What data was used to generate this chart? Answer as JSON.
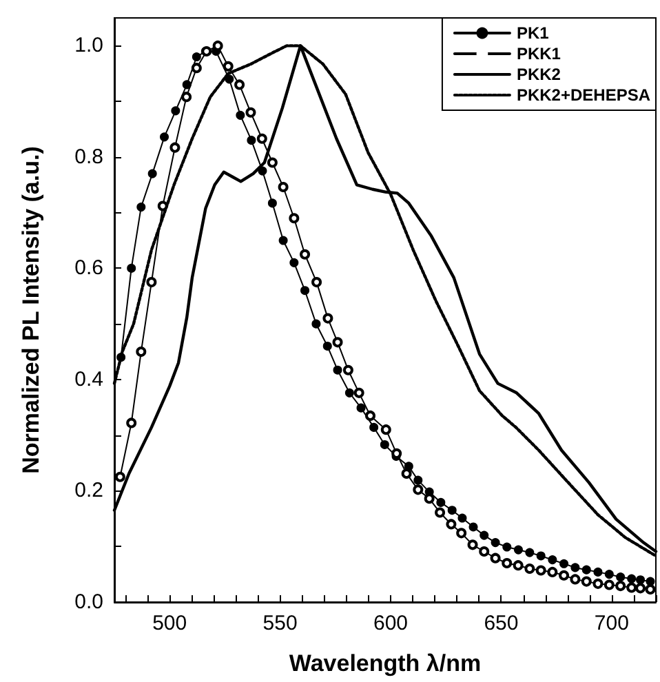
{
  "chart_data": {
    "type": "line",
    "xlabel": "Wavelength λ/nm",
    "ylabel": "Normalized PL Intensity (a.u.)",
    "xlim": [
      475,
      720
    ],
    "ylim": [
      0,
      1.05
    ],
    "xticks": [
      {
        "value": 480,
        "label": null
      },
      {
        "value": 490,
        "label": null
      },
      500,
      {
        "value": 510,
        "label": null
      },
      {
        "value": 520,
        "label": null
      },
      {
        "value": 530,
        "label": null
      },
      {
        "value": 540,
        "label": null
      },
      550,
      {
        "value": 560,
        "label": null
      },
      {
        "value": 570,
        "label": null
      },
      {
        "value": 580,
        "label": null
      },
      {
        "value": 590,
        "label": null
      },
      600,
      {
        "value": 610,
        "label": null
      },
      {
        "value": 620,
        "label": null
      },
      {
        "value": 630,
        "label": null
      },
      {
        "value": 640,
        "label": null
      },
      650,
      {
        "value": 660,
        "label": null
      },
      {
        "value": 670,
        "label": null
      },
      {
        "value": 680,
        "label": null
      },
      {
        "value": 690,
        "label": null
      },
      700,
      {
        "value": 710,
        "label": null
      },
      {
        "value": 720,
        "label": null
      }
    ],
    "yticks": [
      {
        "value": 0,
        "label": "0.0"
      },
      {
        "value": 0.1,
        "label": null
      },
      {
        "value": 0.2,
        "label": "0.2"
      },
      {
        "value": 0.3,
        "label": null
      },
      {
        "value": 0.4,
        "label": "0.4"
      },
      {
        "value": 0.5,
        "label": null
      },
      {
        "value": 0.6,
        "label": "0.6"
      },
      {
        "value": 0.7,
        "label": null
      },
      {
        "value": 0.8,
        "label": "0.8"
      },
      {
        "value": 0.9,
        "label": null
      },
      {
        "value": 1.0,
        "label": "1.0"
      }
    ],
    "grid": false,
    "legend": "top right",
    "series": [
      {
        "name": "PK1",
        "color": "#000000",
        "marker": "circle",
        "line_style": "solid",
        "x": [
          478,
          482.7,
          487.1,
          492.2,
          497.6,
          502.7,
          507.8,
          512.2,
          516.3,
          521,
          527,
          532,
          537,
          542,
          546.5,
          551.4,
          556.3,
          561.2,
          566.3,
          571.4,
          576,
          581.4,
          586.6,
          592.4,
          597.3,
          602.5,
          608.2,
          612.4,
          617.5,
          622.7,
          627.8,
          632.4,
          637.4,
          642.3,
          647.4,
          652.6,
          657.8,
          662.9,
          668,
          673.2,
          678.4,
          683.5,
          688.6,
          693.8,
          698.9,
          704,
          709,
          713,
          717.5
        ],
        "values": [
          0.44,
          0.6,
          0.71,
          0.77,
          0.836,
          0.883,
          0.93,
          0.98,
          0.99,
          0.99,
          0.94,
          0.875,
          0.83,
          0.775,
          0.717,
          0.65,
          0.61,
          0.56,
          0.5,
          0.46,
          0.417,
          0.376,
          0.349,
          0.314,
          0.283,
          0.262,
          0.244,
          0.219,
          0.198,
          0.179,
          0.165,
          0.151,
          0.135,
          0.12,
          0.107,
          0.099,
          0.094,
          0.089,
          0.083,
          0.076,
          0.069,
          0.062,
          0.058,
          0.054,
          0.05,
          0.045,
          0.042,
          0.04,
          0.037
        ]
      },
      {
        "name": "PKK1",
        "color": "#000000",
        "marker": "open circle",
        "line_style": "solid",
        "x": [
          477.6,
          482.7,
          487.1,
          491.8,
          496.9,
          502.4,
          507.6,
          512.2,
          516.7,
          521.8,
          526.5,
          531.6,
          536.7,
          541.8,
          546.5,
          551.4,
          556.3,
          561.2,
          566.5,
          571.6,
          576,
          580.8,
          585.7,
          590.8,
          597.9,
          602.7,
          607.2,
          612.4,
          617.5,
          622.3,
          627.4,
          632,
          637.1,
          642.3,
          647.4,
          652.6,
          657.7,
          662.9,
          668,
          673.2,
          678.4,
          683.5,
          688.6,
          693.8,
          698.9,
          704,
          709,
          713,
          717.5
        ],
        "values": [
          0.225,
          0.322,
          0.45,
          0.575,
          0.712,
          0.817,
          0.908,
          0.96,
          0.99,
          1.0,
          0.963,
          0.93,
          0.88,
          0.833,
          0.79,
          0.746,
          0.69,
          0.625,
          0.575,
          0.51,
          0.467,
          0.417,
          0.376,
          0.335,
          0.31,
          0.267,
          0.231,
          0.202,
          0.186,
          0.161,
          0.14,
          0.124,
          0.103,
          0.091,
          0.079,
          0.07,
          0.066,
          0.06,
          0.057,
          0.054,
          0.048,
          0.041,
          0.037,
          0.033,
          0.031,
          0.029,
          0.026,
          0.025,
          0.023
        ]
      },
      {
        "name": "PKK2",
        "color": "#000000",
        "marker": "none",
        "line_style": "solid",
        "x": [
          475,
          481.6,
          491.8,
          500,
          504,
          507.8,
          510.2,
          516.3,
          520.4,
          524.5,
          528.6,
          532.2,
          537.8,
          542.9,
          551,
          559.2,
          567.3,
          575.5,
          584.7,
          591.8,
          597.9,
          603,
          608.2,
          618.4,
          628.6,
          640.2,
          648.5,
          657,
          667,
          677.3,
          689.7,
          702,
          714.4,
          720
        ],
        "values": [
          0.165,
          0.231,
          0.314,
          0.388,
          0.43,
          0.512,
          0.583,
          0.708,
          0.75,
          0.773,
          0.764,
          0.756,
          0.77,
          0.79,
          0.888,
          1.0,
          0.917,
          0.833,
          0.75,
          0.742,
          0.737,
          0.735,
          0.717,
          0.658,
          0.583,
          0.446,
          0.393,
          0.376,
          0.339,
          0.273,
          0.215,
          0.149,
          0.107,
          0.091
        ]
      },
      {
        "name": "PKK2+DEHEPSA",
        "color": "#000000",
        "marker": "none",
        "line_style": "dotted",
        "x": [
          475,
          478.6,
          483.7,
          491.8,
          502,
          510.2,
          518.4,
          526.5,
          536.7,
          546.9,
          553,
          559.2,
          569.4,
          579.6,
          589.8,
          600,
          610.2,
          620.4,
          630.6,
          640.2,
          650.5,
          656.7,
          667,
          679.4,
          693.8,
          706.2,
          720
        ],
        "values": [
          0.393,
          0.45,
          0.5,
          0.633,
          0.75,
          0.833,
          0.908,
          0.95,
          0.967,
          0.988,
          1.0,
          1.0,
          0.967,
          0.913,
          0.808,
          0.733,
          0.633,
          0.542,
          0.46,
          0.38,
          0.335,
          0.314,
          0.273,
          0.219,
          0.157,
          0.116,
          0.083
        ]
      }
    ]
  }
}
